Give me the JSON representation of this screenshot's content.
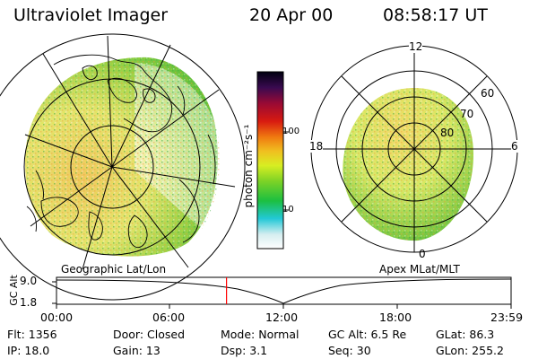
{
  "header": {
    "instrument": "Ultraviolet Imager",
    "date": "20 Apr 00",
    "time": "08:58:17 UT"
  },
  "left_panel": {
    "caption": "Geographic Lat/Lon"
  },
  "right_panel": {
    "caption": "Apex MLat/MLT",
    "lat_labels": [
      "60",
      "70",
      "80"
    ],
    "mlt_labels": {
      "top": "12",
      "left": "18",
      "right": "6",
      "bottom": "0"
    }
  },
  "colorbar": {
    "unit_label": "photon cm⁻²s⁻¹",
    "ticks": [
      "100",
      "10"
    ]
  },
  "altitude_plot": {
    "axis_label": "GC Alt",
    "y_ticks": [
      "9.0",
      "1.8"
    ],
    "x_ticks": [
      "00:00",
      "06:00",
      "12:00",
      "18:00",
      "23:59"
    ],
    "marker_time_fraction": 0.374
  },
  "status": {
    "row1": {
      "flt": "Flt:  1356",
      "door": "Door: Closed",
      "mode": "Mode: Normal",
      "gcalt": "GC Alt: 6.5 Re",
      "glat": "GLat:  86.3"
    },
    "row2": {
      "ip": "IP: 18.0",
      "gain": "Gain: 13",
      "dsp": "Dsp:     3.1",
      "seq": "Seq: 30",
      "glon": "GLon: 255.2"
    }
  },
  "colors": {
    "background": "#ffffff",
    "marker": "#ff0000",
    "scale": [
      "#ffffff",
      "#9fdfe8",
      "#22c8d6",
      "#1cbf40",
      "#7cd226",
      "#d8ee22",
      "#f0c020",
      "#f07a10",
      "#d81a10",
      "#9a0a34",
      "#3a0a50",
      "#000010"
    ]
  }
}
